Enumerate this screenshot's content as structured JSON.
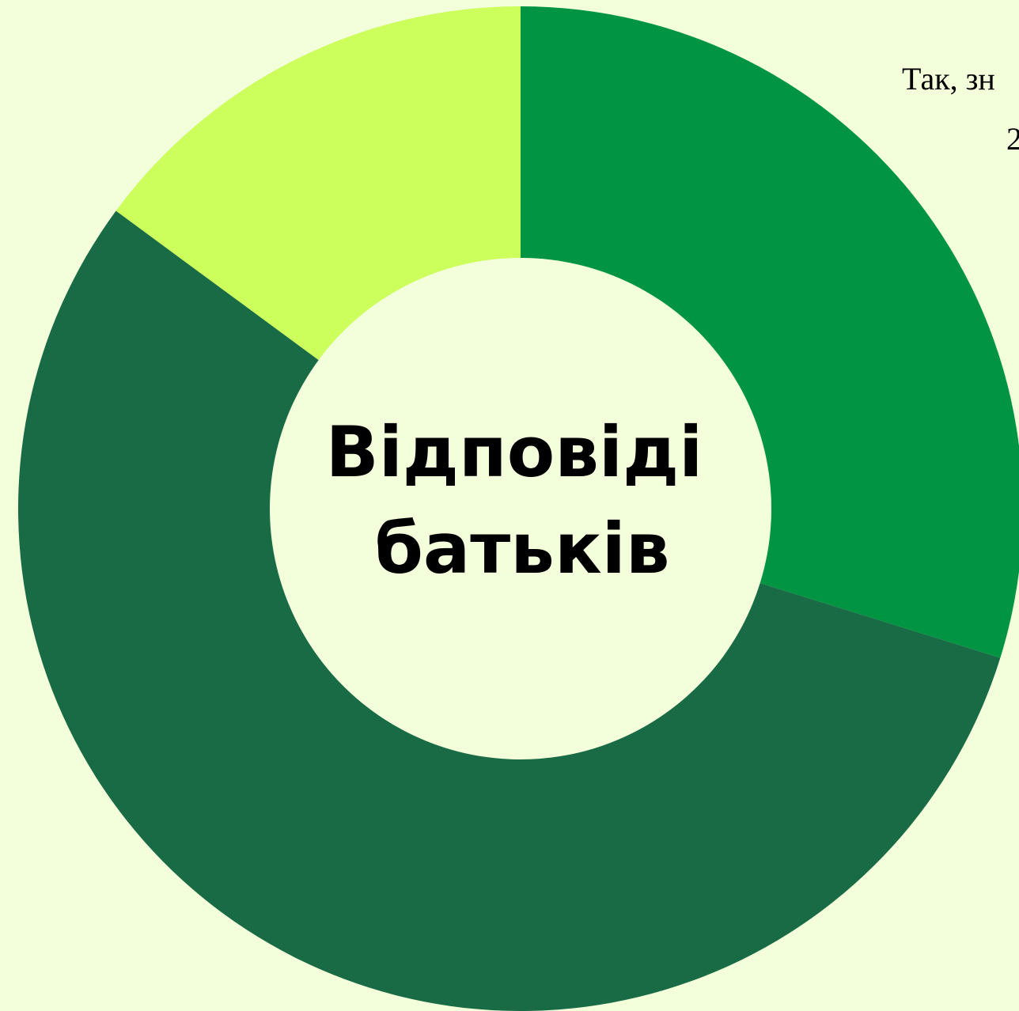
{
  "chart_data": {
    "type": "donut",
    "center_text": [
      "Відповіді",
      "батьків"
    ],
    "categories": [
      null,
      null,
      null
    ],
    "values": [
      29.8,
      55.3,
      14.9
    ],
    "colors": [
      "#019443",
      "#196b45",
      "#ccff5b"
    ],
    "annotations": [
      "Так, зн",
      "2"
    ]
  }
}
